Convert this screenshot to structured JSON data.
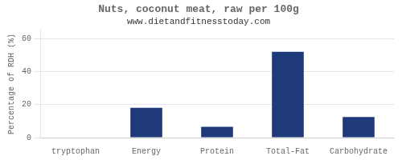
{
  "chart_data": {
    "type": "bar",
    "title": "Nuts, coconut meat, raw per 100g",
    "subtitle": "www.dietandfitnesstoday.com",
    "categories": [
      "tryptophan",
      "Energy",
      "Protein",
      "Total-Fat",
      "Carbohydrate"
    ],
    "values": [
      0,
      18,
      6.5,
      52,
      12.5
    ],
    "color": "#1F3A7A",
    "ylabel": "Percentage of RDH (%)",
    "ylim": [
      0,
      65
    ],
    "yticks": [
      0,
      20,
      40,
      60
    ],
    "grid": true
  }
}
